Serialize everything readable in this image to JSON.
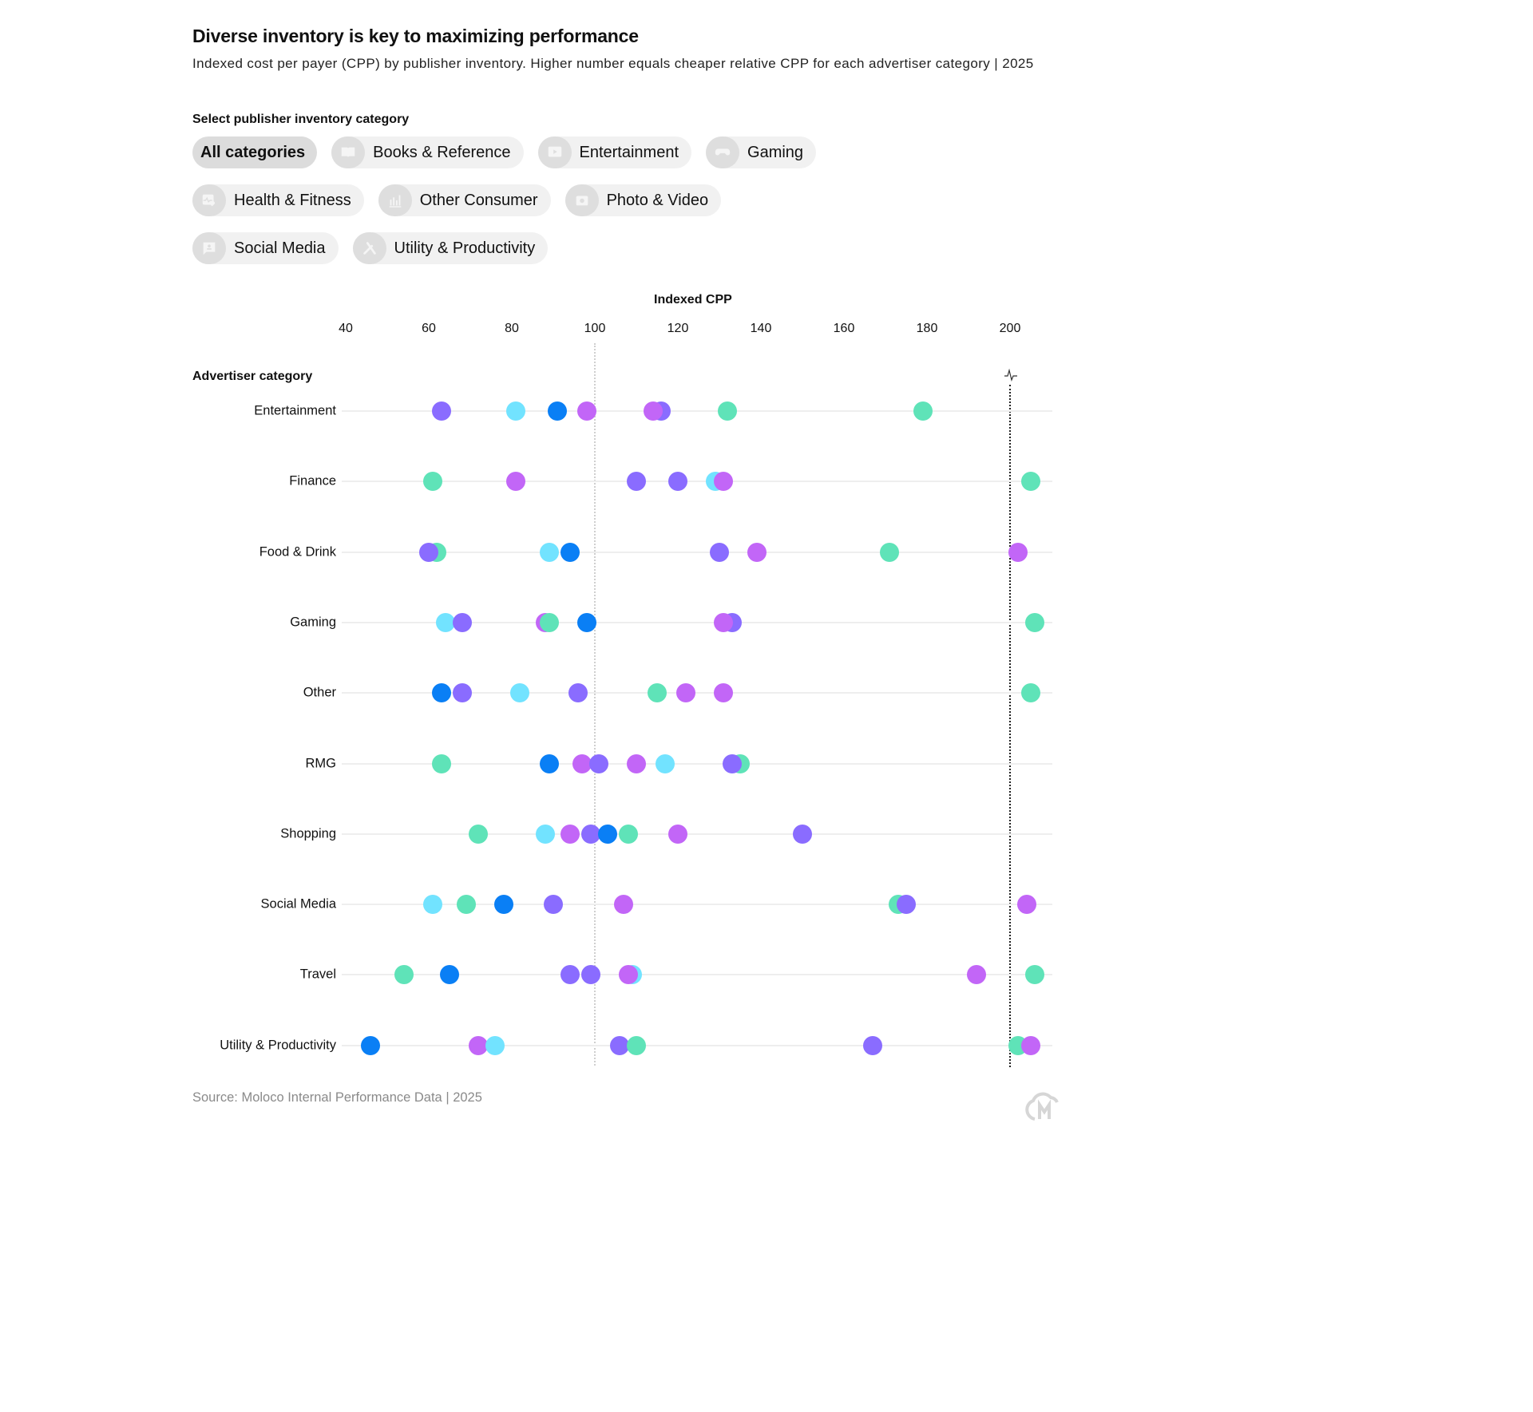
{
  "header": {
    "title": "Diverse inventory is key to maximizing performance",
    "subtitle": "Indexed cost per payer (CPP) by publisher inventory. Higher number equals cheaper relative CPP for each advertiser category | 2025"
  },
  "filter": {
    "label": "Select publisher inventory category",
    "options": [
      {
        "label": "All categories",
        "icon": "none",
        "active": true
      },
      {
        "label": "Books & Reference",
        "icon": "book-icon",
        "active": false
      },
      {
        "label": "Entertainment",
        "icon": "play-screen-icon",
        "active": false
      },
      {
        "label": "Gaming",
        "icon": "gamepad-icon",
        "active": false
      },
      {
        "label": "Health & Fitness",
        "icon": "heart-pulse-icon",
        "active": false
      },
      {
        "label": "Other Consumer",
        "icon": "bar-chart-icon",
        "active": false
      },
      {
        "label": "Photo & Video",
        "icon": "camera-icon",
        "active": false
      },
      {
        "label": "Social Media",
        "icon": "chat-person-icon",
        "active": false
      },
      {
        "label": "Utility & Productivity",
        "icon": "tools-icon",
        "active": false
      }
    ]
  },
  "colors": {
    "violet": "#8a6cff",
    "light_blue": "#72e3ff",
    "blue": "#0a7ff5",
    "magenta": "#c266f7",
    "green": "#5fe3b8"
  },
  "chart_data": {
    "type": "scatter",
    "title": "Diverse inventory is key to maximizing performance",
    "subtitle": "Indexed cost per payer (CPP) by publisher inventory. Higher number equals cheaper relative CPP for each advertiser category | 2025",
    "xlabel": "Indexed CPP",
    "ylabel": "Advertiser category",
    "x_ticks": [
      40,
      60,
      80,
      100,
      120,
      140,
      160,
      180,
      200
    ],
    "xlim": [
      40,
      210
    ],
    "reference_lines": [
      {
        "value": 100,
        "style": "dotted-light"
      },
      {
        "value": 200,
        "style": "dotted-dark",
        "note": "axis break marker"
      }
    ],
    "grid": false,
    "legend": "none",
    "categories": [
      "Entertainment",
      "Finance",
      "Food & Drink",
      "Gaming",
      "Other",
      "RMG",
      "Shopping",
      "Social Media",
      "Travel",
      "Utility & Productivity"
    ],
    "points": [
      {
        "category": "Entertainment",
        "values": [
          {
            "color": "violet",
            "x": 63
          },
          {
            "color": "light_blue",
            "x": 81
          },
          {
            "color": "blue",
            "x": 91
          },
          {
            "color": "magenta",
            "x": 98
          },
          {
            "color": "violet",
            "x": 116
          },
          {
            "color": "magenta",
            "x": 114
          },
          {
            "color": "green",
            "x": 132
          },
          {
            "color": "green",
            "x": 179
          }
        ]
      },
      {
        "category": "Finance",
        "values": [
          {
            "color": "green",
            "x": 61
          },
          {
            "color": "magenta",
            "x": 81
          },
          {
            "color": "violet",
            "x": 110
          },
          {
            "color": "violet",
            "x": 120
          },
          {
            "color": "light_blue",
            "x": 129
          },
          {
            "color": "magenta",
            "x": 131
          },
          {
            "color": "green",
            "x": 205
          }
        ]
      },
      {
        "category": "Food & Drink",
        "values": [
          {
            "color": "green",
            "x": 62
          },
          {
            "color": "violet",
            "x": 60
          },
          {
            "color": "light_blue",
            "x": 89
          },
          {
            "color": "blue",
            "x": 94
          },
          {
            "color": "violet",
            "x": 130
          },
          {
            "color": "magenta",
            "x": 139
          },
          {
            "color": "green",
            "x": 171
          },
          {
            "color": "magenta",
            "x": 202
          }
        ]
      },
      {
        "category": "Gaming",
        "values": [
          {
            "color": "light_blue",
            "x": 64
          },
          {
            "color": "violet",
            "x": 68
          },
          {
            "color": "magenta",
            "x": 88
          },
          {
            "color": "green",
            "x": 89
          },
          {
            "color": "blue",
            "x": 98
          },
          {
            "color": "violet",
            "x": 133
          },
          {
            "color": "magenta",
            "x": 131
          },
          {
            "color": "green",
            "x": 206
          }
        ]
      },
      {
        "category": "Other",
        "values": [
          {
            "color": "blue",
            "x": 63
          },
          {
            "color": "violet",
            "x": 68
          },
          {
            "color": "light_blue",
            "x": 82
          },
          {
            "color": "violet",
            "x": 96
          },
          {
            "color": "green",
            "x": 115
          },
          {
            "color": "magenta",
            "x": 122
          },
          {
            "color": "magenta",
            "x": 131
          },
          {
            "color": "green",
            "x": 205
          }
        ]
      },
      {
        "category": "RMG",
        "values": [
          {
            "color": "green",
            "x": 63
          },
          {
            "color": "blue",
            "x": 89
          },
          {
            "color": "magenta",
            "x": 97
          },
          {
            "color": "violet",
            "x": 101
          },
          {
            "color": "magenta",
            "x": 110
          },
          {
            "color": "light_blue",
            "x": 117
          },
          {
            "color": "green",
            "x": 135
          },
          {
            "color": "violet",
            "x": 133
          }
        ]
      },
      {
        "category": "Shopping",
        "values": [
          {
            "color": "green",
            "x": 72
          },
          {
            "color": "light_blue",
            "x": 88
          },
          {
            "color": "magenta",
            "x": 94
          },
          {
            "color": "violet",
            "x": 99
          },
          {
            "color": "blue",
            "x": 103
          },
          {
            "color": "green",
            "x": 108
          },
          {
            "color": "magenta",
            "x": 120
          },
          {
            "color": "violet",
            "x": 150
          }
        ]
      },
      {
        "category": "Social Media",
        "values": [
          {
            "color": "light_blue",
            "x": 61
          },
          {
            "color": "green",
            "x": 69
          },
          {
            "color": "blue",
            "x": 78
          },
          {
            "color": "violet",
            "x": 90
          },
          {
            "color": "magenta",
            "x": 107
          },
          {
            "color": "green",
            "x": 173
          },
          {
            "color": "violet",
            "x": 175
          },
          {
            "color": "magenta",
            "x": 204
          }
        ]
      },
      {
        "category": "Travel",
        "values": [
          {
            "color": "green",
            "x": 54
          },
          {
            "color": "blue",
            "x": 65
          },
          {
            "color": "violet",
            "x": 94
          },
          {
            "color": "violet",
            "x": 99
          },
          {
            "color": "light_blue",
            "x": 109
          },
          {
            "color": "magenta",
            "x": 108
          },
          {
            "color": "magenta",
            "x": 192
          },
          {
            "color": "green",
            "x": 206
          }
        ]
      },
      {
        "category": "Utility & Productivity",
        "values": [
          {
            "color": "blue",
            "x": 46
          },
          {
            "color": "magenta",
            "x": 72
          },
          {
            "color": "light_blue",
            "x": 76
          },
          {
            "color": "violet",
            "x": 106
          },
          {
            "color": "green",
            "x": 110
          },
          {
            "color": "violet",
            "x": 167
          },
          {
            "color": "green",
            "x": 202
          },
          {
            "color": "magenta",
            "x": 205
          }
        ]
      }
    ]
  },
  "footer": {
    "source": "Source: Moloco Internal Performance Data | 2025"
  }
}
